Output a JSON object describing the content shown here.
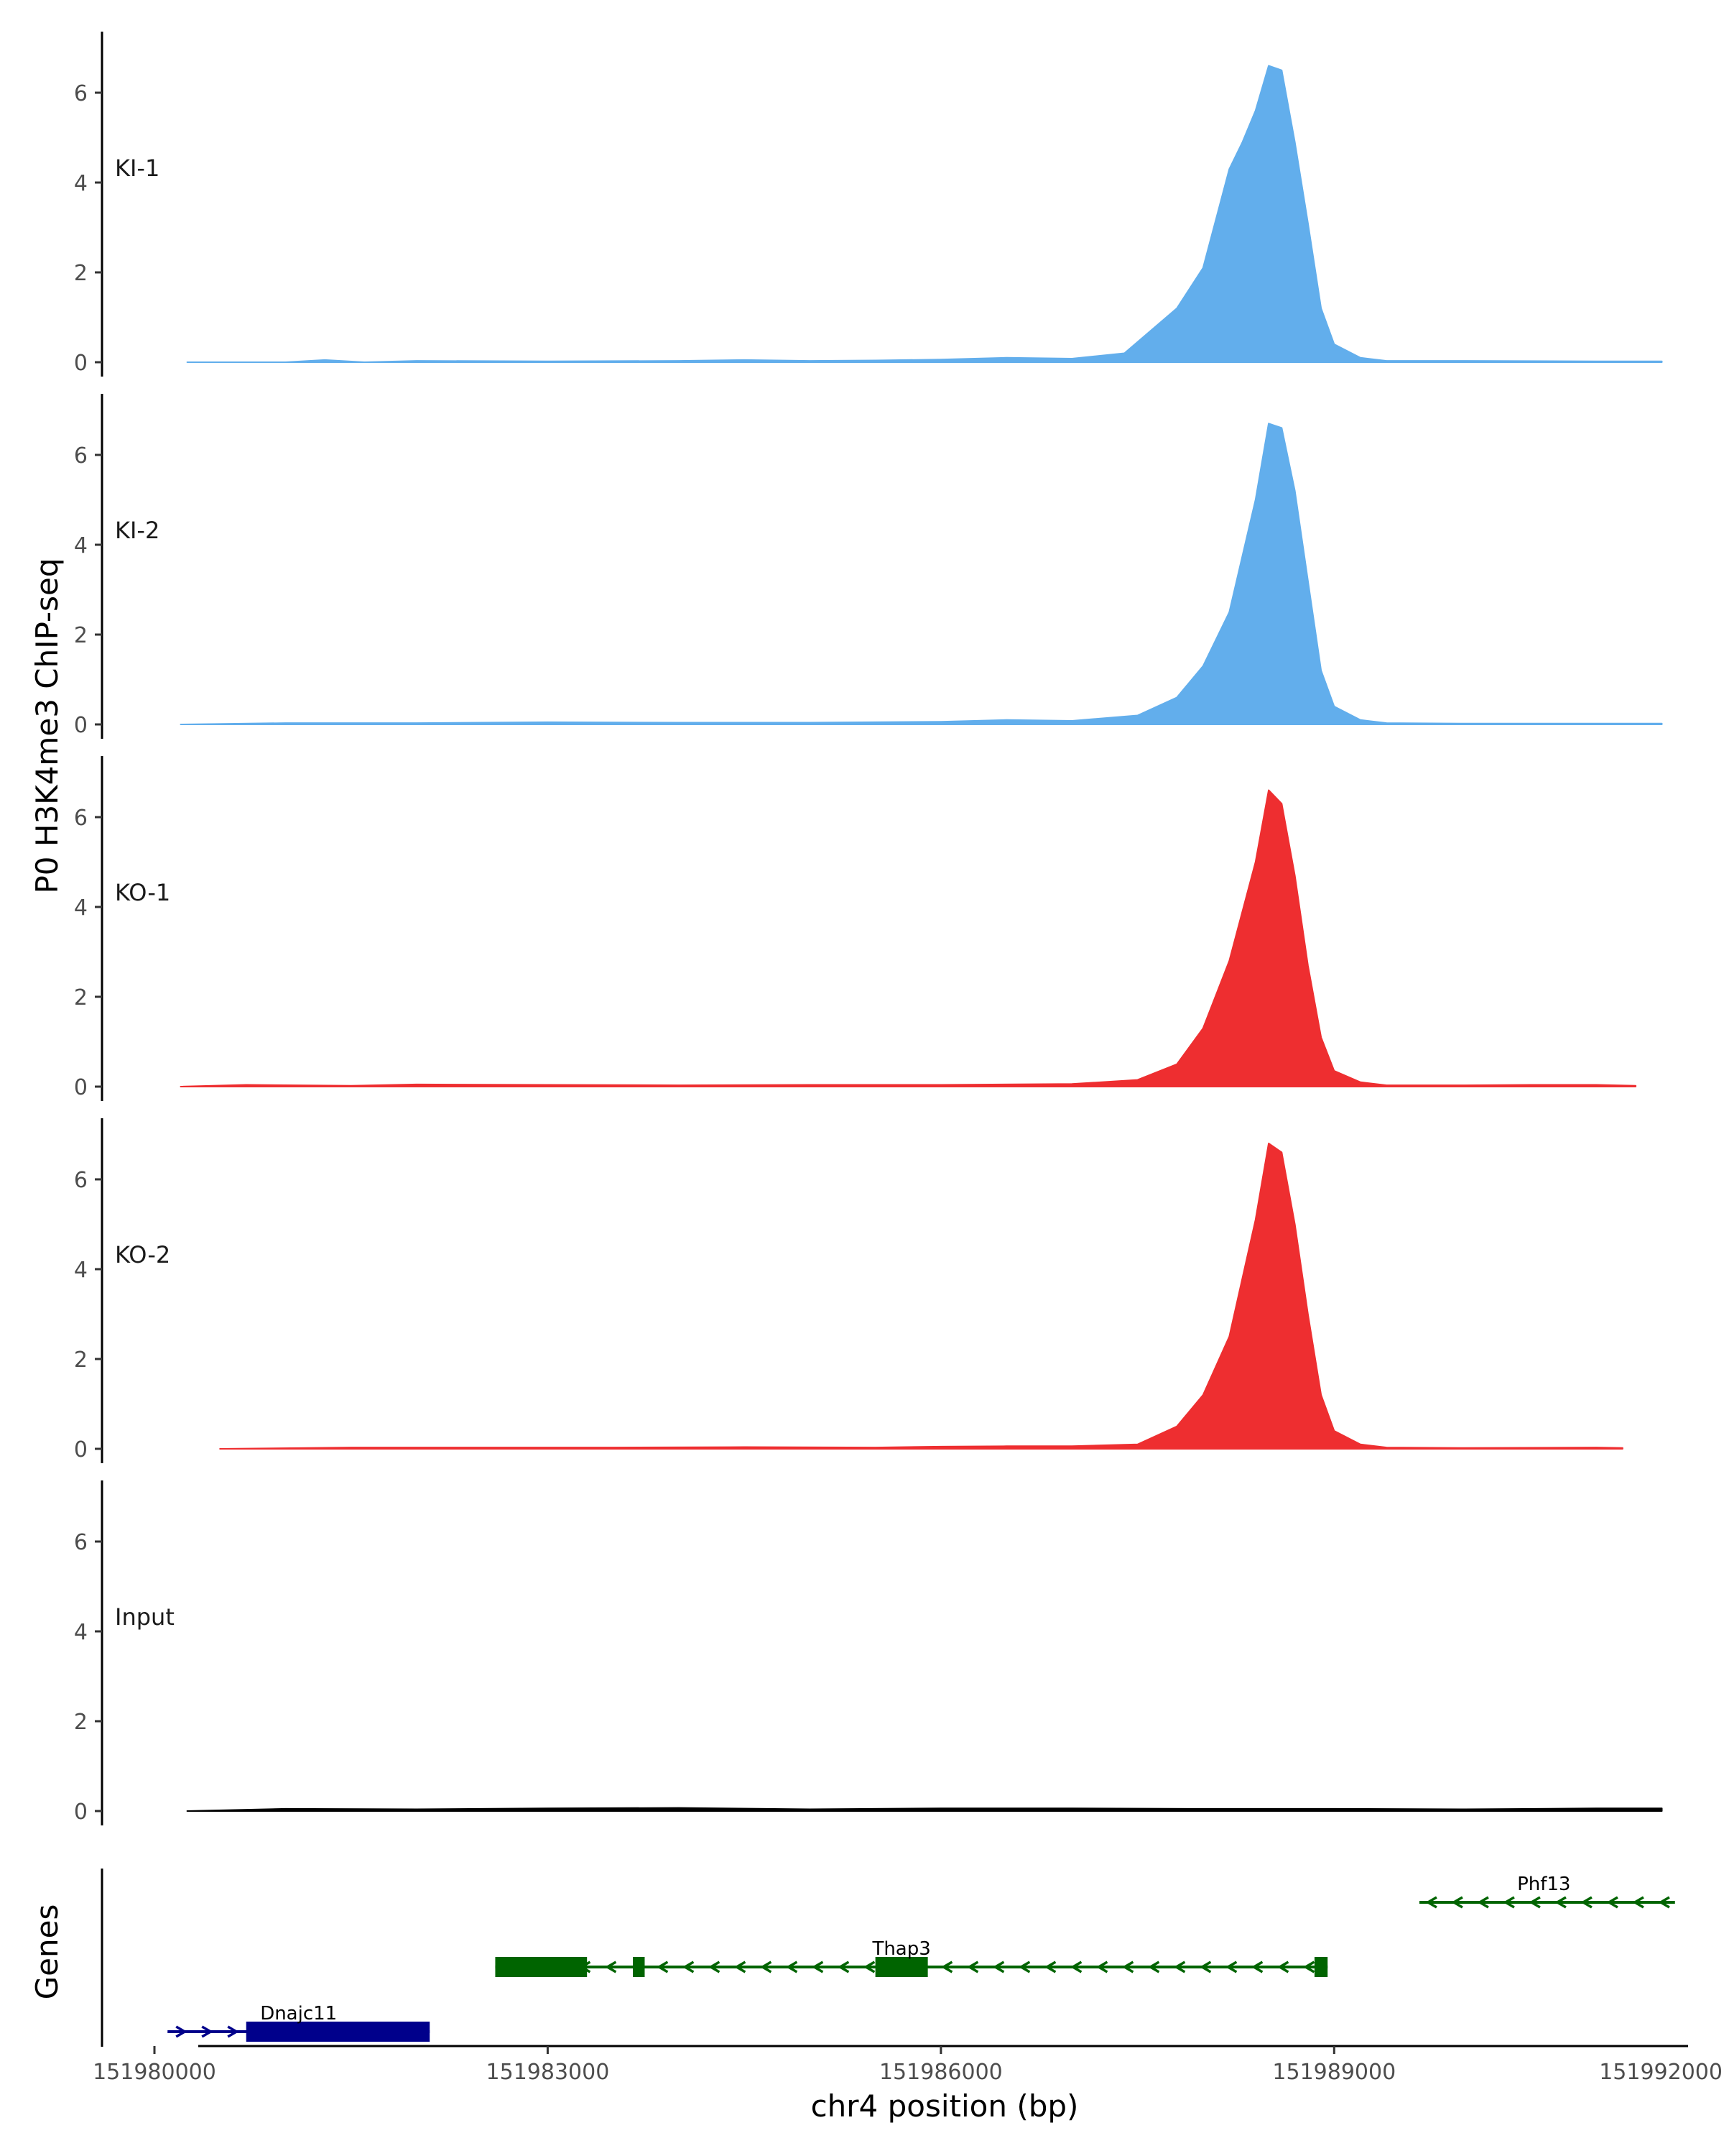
{
  "chart_data": {
    "type": "area",
    "title": "",
    "ylabel": "P0 H3K4me3 ChIP-seq",
    "xlabel": "chr4 position (bp)",
    "genes_label": "Genes",
    "xlim": [
      151979600,
      151991700
    ],
    "ylim": [
      0,
      7.2
    ],
    "y_ticks": [
      0,
      2,
      4,
      6
    ],
    "x_ticks": [
      {
        "value": 151980000,
        "label": "151980000"
      },
      {
        "value": 151983000,
        "label": "151983000"
      },
      {
        "value": 151986000,
        "label": "151986000"
      },
      {
        "value": 151989000,
        "label": "151989000"
      },
      {
        "value": 151992000,
        "label": "151992000"
      }
    ],
    "grid": false,
    "colors": {
      "KI": "#62aeec",
      "KO": "#ee2e30",
      "Input": "#000000",
      "Thap3": "#006400",
      "Phf13": "#006400",
      "Dnajc11": "#00008b"
    },
    "tracks": [
      {
        "name": "KI-1",
        "color": "#62aeec",
        "x": [
          151980250,
          151981000,
          151981300,
          151981600,
          151982000,
          151983000,
          151984000,
          151984500,
          151985000,
          151985500,
          151986000,
          151986500,
          151987000,
          151987400,
          151987600,
          151987800,
          151988000,
          151988200,
          151988300,
          151988400,
          151988500,
          151988600,
          151988700,
          151988800,
          151988900,
          151989000,
          151989200,
          151989400,
          151990000,
          151991000,
          151991500
        ],
        "y": [
          0.0,
          0.0,
          0.05,
          0.0,
          0.03,
          0.02,
          0.03,
          0.05,
          0.03,
          0.04,
          0.06,
          0.1,
          0.08,
          0.2,
          0.7,
          1.2,
          2.1,
          4.3,
          4.9,
          5.6,
          6.6,
          6.5,
          4.9,
          3.1,
          1.2,
          0.4,
          0.1,
          0.03,
          0.03,
          0.02,
          0.02
        ]
      },
      {
        "name": "KI-2",
        "color": "#62aeec",
        "x": [
          151980200,
          151981000,
          151982000,
          151983000,
          151984000,
          151985000,
          151986000,
          151986500,
          151987000,
          151987500,
          151987800,
          151988000,
          151988200,
          151988400,
          151988500,
          151988600,
          151988700,
          151988800,
          151988900,
          151989000,
          151989200,
          151989400,
          151990000,
          151991000,
          151991500
        ],
        "y": [
          0.0,
          0.03,
          0.03,
          0.05,
          0.04,
          0.04,
          0.06,
          0.1,
          0.08,
          0.2,
          0.6,
          1.3,
          2.5,
          5.0,
          6.7,
          6.6,
          5.2,
          3.2,
          1.2,
          0.4,
          0.1,
          0.03,
          0.02,
          0.02,
          0.02
        ]
      },
      {
        "name": "KO-1",
        "color": "#ee2e30",
        "x": [
          151980200,
          151980700,
          151981500,
          151982000,
          151983000,
          151984000,
          151985000,
          151986000,
          151987000,
          151987500,
          151987800,
          151988000,
          151988200,
          151988400,
          151988500,
          151988600,
          151988700,
          151988800,
          151988900,
          151989000,
          151989200,
          151989400,
          151990000,
          151990500,
          151991000,
          151991300
        ],
        "y": [
          0.0,
          0.04,
          0.02,
          0.05,
          0.04,
          0.03,
          0.04,
          0.04,
          0.06,
          0.15,
          0.5,
          1.3,
          2.8,
          5.0,
          6.6,
          6.3,
          4.7,
          2.7,
          1.1,
          0.35,
          0.1,
          0.03,
          0.03,
          0.04,
          0.04,
          0.02
        ]
      },
      {
        "name": "KO-2",
        "color": "#ee2e30",
        "x": [
          151980500,
          151981500,
          151982500,
          151983500,
          151984500,
          151985500,
          151986000,
          151986500,
          151987000,
          151987500,
          151987800,
          151988000,
          151988200,
          151988400,
          151988500,
          151988600,
          151988700,
          151988800,
          151988900,
          151989000,
          151989200,
          151989400,
          151990000,
          151991000,
          151991200
        ],
        "y": [
          0.0,
          0.03,
          0.03,
          0.03,
          0.04,
          0.03,
          0.05,
          0.06,
          0.06,
          0.1,
          0.5,
          1.2,
          2.5,
          5.1,
          6.8,
          6.6,
          5.0,
          3.0,
          1.2,
          0.4,
          0.1,
          0.03,
          0.02,
          0.03,
          0.02
        ]
      },
      {
        "name": "Input",
        "color": "#000000",
        "x": [
          151980250,
          151981000,
          151982000,
          151983000,
          151984000,
          151985000,
          151986000,
          151987000,
          151988000,
          151989000,
          151990000,
          151991000,
          151991500
        ],
        "y": [
          0.0,
          0.05,
          0.04,
          0.06,
          0.07,
          0.04,
          0.06,
          0.06,
          0.05,
          0.05,
          0.04,
          0.06,
          0.06
        ]
      }
    ],
    "genes": [
      {
        "name": "Phf13",
        "color": "#006400",
        "start": 151989650,
        "end": 151991600,
        "strand": "-",
        "row": 0,
        "exons": [],
        "label_x": 151990600
      },
      {
        "name": "Thap3",
        "color": "#006400",
        "start": 151982600,
        "end": 151988950,
        "strand": "-",
        "row": 1,
        "exons": [
          [
            151982600,
            151983300
          ],
          [
            151983650,
            151983740
          ],
          [
            151985500,
            151985900
          ],
          [
            151988850,
            151988950
          ]
        ],
        "label_x": 151985700
      },
      {
        "name": "Dnajc11",
        "color": "#00008b",
        "start": 151980100,
        "end": 151982100,
        "strand": "+",
        "row": 2,
        "exons": [
          [
            151980700,
            151982100
          ]
        ],
        "label_x": 151981100
      }
    ]
  }
}
